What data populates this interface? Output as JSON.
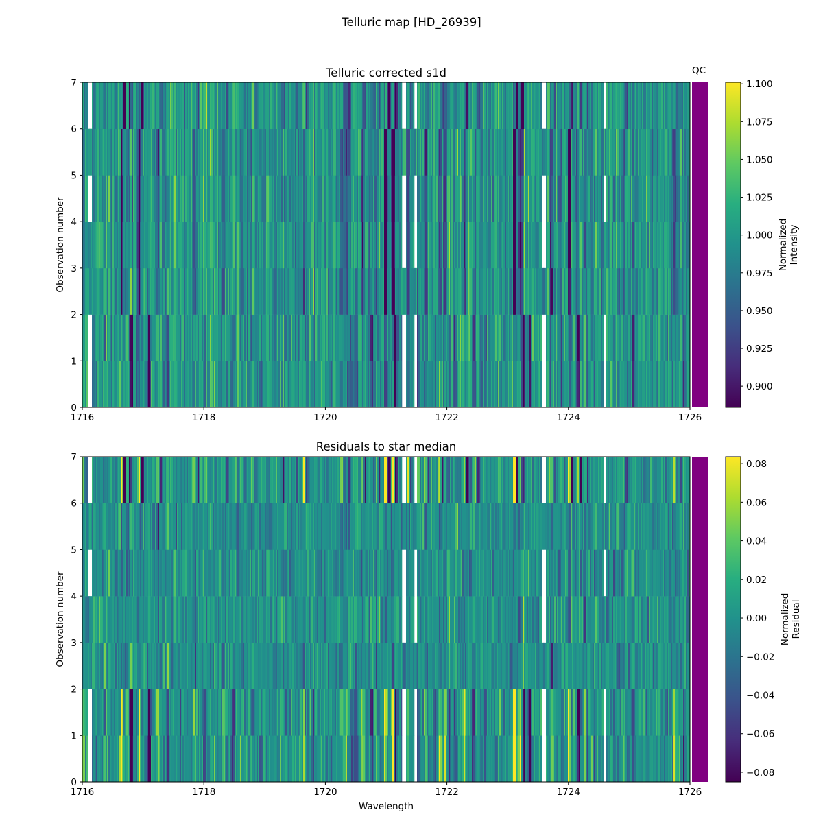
{
  "title": "Telluric map [HD_26939]",
  "qc_label": "QC",
  "colors": {
    "qc_bar": "#800080",
    "gap": "#ffffff",
    "colormap": "viridis"
  },
  "chart_data": [
    {
      "type": "heatmap",
      "title": "Telluric corrected s1d",
      "xlabel": "",
      "ylabel": "Observation number",
      "xlim": [
        1716,
        1726
      ],
      "ylim": [
        0,
        7
      ],
      "xticks": [
        1716,
        1718,
        1720,
        1722,
        1724,
        1726
      ],
      "xtick_labels": [
        "1716",
        "1718",
        "1720",
        "1722",
        "1724",
        "1726"
      ],
      "yticks": [
        0,
        1,
        2,
        3,
        4,
        5,
        6,
        7
      ],
      "ytick_labels": [
        "0",
        "1",
        "2",
        "3",
        "4",
        "5",
        "6",
        "7"
      ],
      "rows": 7,
      "colorbar": {
        "label": [
          "Normalized",
          "Intensity"
        ],
        "range": [
          0.886,
          1.101
        ],
        "ticks": [
          0.9,
          0.925,
          0.95,
          0.975,
          1.0,
          1.025,
          1.05,
          1.075,
          1.1
        ],
        "tick_labels": [
          "0.900",
          "0.925",
          "0.950",
          "0.975",
          "1.000",
          "1.025",
          "1.050",
          "1.075",
          "1.100"
        ]
      },
      "values": "normalized intensity ≈ 1.00 ± 0.025 with deep absorption lines",
      "absorption_lines": [
        {
          "wavelength": 1716.65,
          "depth": 0.16
        },
        {
          "wavelength": 1716.93,
          "depth": 0.08
        },
        {
          "wavelength": 1717.25,
          "depth": 0.07
        },
        {
          "wavelength": 1720.99,
          "depth": 0.16
        },
        {
          "wavelength": 1721.12,
          "depth": 0.15
        },
        {
          "wavelength": 1721.36,
          "depth": 0.06
        },
        {
          "wavelength": 1723.11,
          "depth": 0.17
        },
        {
          "wavelength": 1723.21,
          "depth": 0.08
        },
        {
          "wavelength": 1724.01,
          "depth": 0.16
        },
        {
          "wavelength": 1724.15,
          "depth": 0.06
        }
      ],
      "row_line_shifts": [
        0.16,
        0.16,
        0.0,
        0.0,
        0.0,
        0.0,
        0.05
      ],
      "gaps": [
        {
          "from": 1716.09,
          "to": 1716.15,
          "rows": [
            0,
            1,
            4,
            6
          ]
        },
        {
          "from": 1721.26,
          "to": 1721.32,
          "rows": [
            0,
            1,
            3,
            4,
            6
          ]
        },
        {
          "from": 1721.46,
          "to": 1721.51,
          "rows": [
            0,
            1,
            3,
            4,
            6
          ]
        },
        {
          "from": 1723.57,
          "to": 1723.63,
          "rows": [
            0,
            1,
            3,
            4,
            6
          ]
        },
        {
          "from": 1724.32,
          "to": 1724.34,
          "rows": [
            6
          ]
        },
        {
          "from": 1724.58,
          "to": 1724.62,
          "rows": [
            0,
            1,
            4,
            6
          ]
        }
      ]
    },
    {
      "type": "heatmap",
      "title": "Residuals to star median",
      "xlabel": "Wavelength",
      "ylabel": "Observation number",
      "xlim": [
        1716,
        1726
      ],
      "ylim": [
        0,
        7
      ],
      "xticks": [
        1716,
        1718,
        1720,
        1722,
        1724,
        1726
      ],
      "xtick_labels": [
        "1716",
        "1718",
        "1720",
        "1722",
        "1724",
        "1726"
      ],
      "yticks": [
        0,
        1,
        2,
        3,
        4,
        5,
        6,
        7
      ],
      "ytick_labels": [
        "0",
        "1",
        "2",
        "3",
        "4",
        "5",
        "6",
        "7"
      ],
      "rows": 7,
      "colorbar": {
        "label": [
          "Normalized",
          "Residual"
        ],
        "range": [
          -0.085,
          0.0836
        ],
        "ticks": [
          -0.08,
          -0.06,
          -0.04,
          -0.02,
          0.0,
          0.02,
          0.04,
          0.06,
          0.08
        ],
        "tick_labels": [
          "−0.08",
          "−0.06",
          "−0.04",
          "−0.02",
          "0.00",
          "0.02",
          "0.04",
          "0.06",
          "0.08"
        ]
      },
      "values": "intensity minus per-wavelength median across observations"
    }
  ]
}
